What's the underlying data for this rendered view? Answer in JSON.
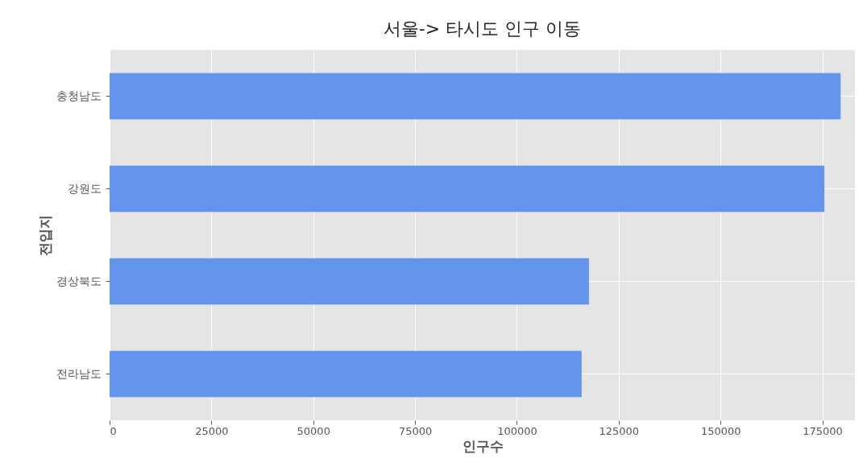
{
  "chart_data": {
    "type": "bar",
    "orientation": "horizontal",
    "title": "서울-> 타시도 인구 이동",
    "xlabel": "인구수",
    "ylabel": "전입지",
    "categories": [
      "충청남도",
      "강원도",
      "경상북도",
      "전라남도"
    ],
    "series": [
      {
        "color": "#6495ed",
        "values": [
          179500,
          175500,
          117700,
          115900
        ]
      }
    ],
    "xlim": [
      0,
      183000
    ],
    "xticks": [
      0,
      25000,
      50000,
      75000,
      100000,
      125000,
      150000,
      175000
    ],
    "grid": true,
    "legend": false
  }
}
